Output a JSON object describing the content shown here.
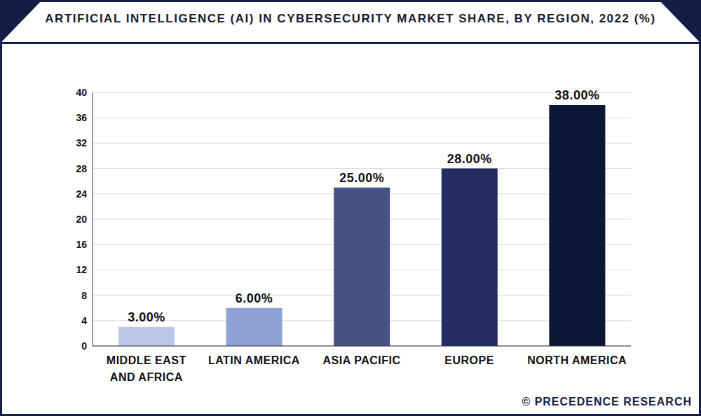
{
  "chart_data": {
    "type": "bar",
    "title": "ARTIFICIAL INTELLIGENCE (AI) IN CYBERSECURITY MARKET SHARE, BY REGION, 2022 (%)",
    "categories": [
      "MIDDLE EAST AND AFRICA",
      "LATIN AMERICA",
      "ASIA PACIFIC",
      "EUROPE",
      "NORTH AMERICA"
    ],
    "values": [
      3,
      6,
      25,
      28,
      38
    ],
    "value_labels": [
      "3.00%",
      "6.00%",
      "25.00%",
      "28.00%",
      "38.00%"
    ],
    "colors": [
      "#bcc6e8",
      "#8fa2d6",
      "#465283",
      "#232d62",
      "#0c1636"
    ],
    "ylim": [
      0,
      40
    ],
    "yticks": [
      0,
      4,
      8,
      12,
      16,
      20,
      24,
      28,
      32,
      36,
      40
    ],
    "grid": true,
    "data_labels": true,
    "annotations": [
      "© PRECEDENCE RESEARCH"
    ]
  }
}
